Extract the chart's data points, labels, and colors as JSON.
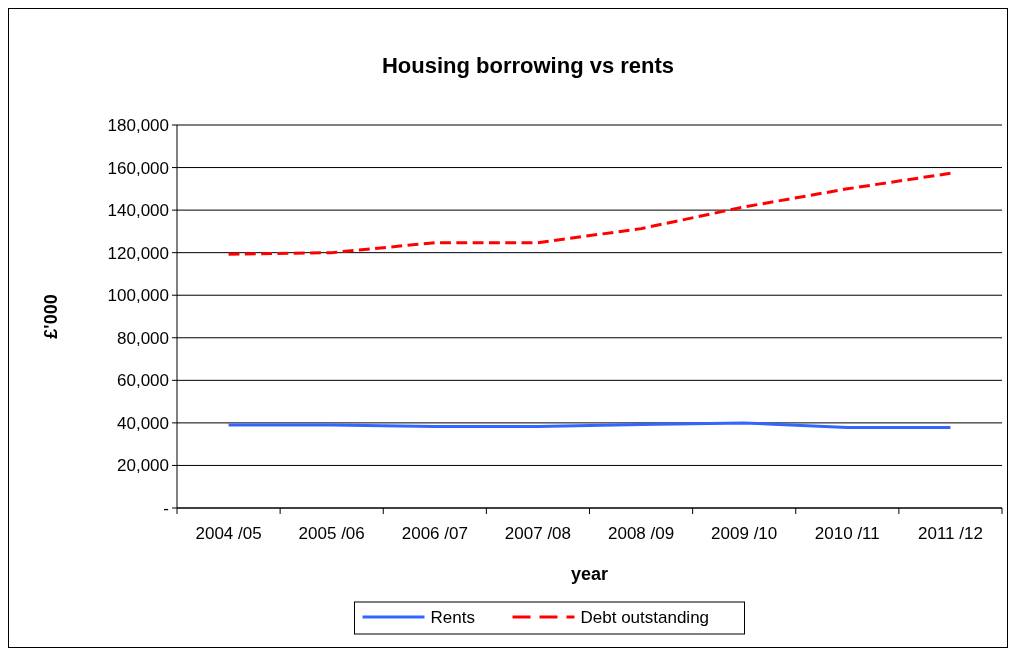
{
  "chart_data": {
    "type": "line",
    "title": "Housing borrowing vs rents",
    "xlabel": "year",
    "ylabel": "£'000",
    "categories": [
      "2004 /05",
      "2005 /06",
      "2006 /07",
      "2007 /08",
      "2008 /09",
      "2009 /10",
      "2010 /11",
      "2011 /12"
    ],
    "series": [
      {
        "name": "Rents",
        "color": "#3366ff",
        "line_style": "solid",
        "values": [
          39000,
          39000,
          38300,
          38300,
          39300,
          40000,
          37800,
          37800
        ]
      },
      {
        "name": "Debt outstanding",
        "color": "#ff0000",
        "line_style": "dashed",
        "values": [
          119300,
          120000,
          124700,
          124700,
          131300,
          141500,
          150000,
          157300
        ]
      }
    ],
    "ylim": [
      0,
      180000
    ],
    "yticks": [
      {
        "value": 0,
        "label": "-"
      },
      {
        "value": 20000,
        "label": "20,000"
      },
      {
        "value": 40000,
        "label": "40,000"
      },
      {
        "value": 60000,
        "label": "60,000"
      },
      {
        "value": 80000,
        "label": "80,000"
      },
      {
        "value": 100000,
        "label": "100,000"
      },
      {
        "value": 120000,
        "label": "120,000"
      },
      {
        "value": 140000,
        "label": "140,000"
      },
      {
        "value": 160000,
        "label": "160,000"
      },
      {
        "value": 180000,
        "label": "180,000"
      }
    ],
    "grid": "y",
    "legend": "bottom",
    "marker": "none"
  }
}
